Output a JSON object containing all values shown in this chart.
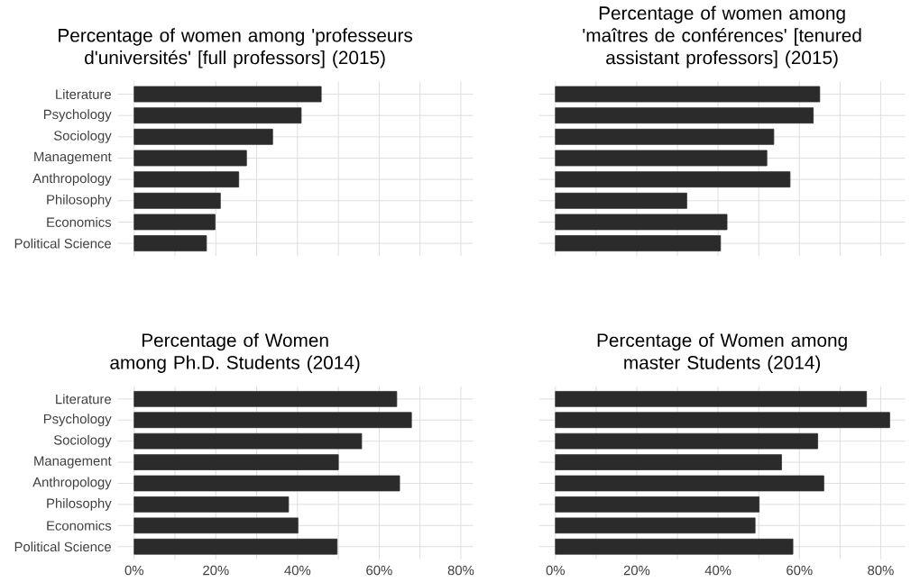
{
  "chart_data": [
    {
      "type": "bar",
      "orientation": "horizontal",
      "title": "Percentage of women among 'professeurs d'universités' [full professors] (2015)",
      "categories": [
        "Literature",
        "Psychology",
        "Sociology",
        "Management",
        "Anthropology",
        "Philosophy",
        "Economics",
        "Political Science"
      ],
      "values": [
        45.8,
        40.9,
        33.9,
        27.5,
        25.6,
        21.1,
        19.8,
        17.7
      ],
      "color": "#2b2b2b",
      "xlim": [
        -4,
        83
      ],
      "xticks": [
        {
          "value": 0,
          "label": null
        },
        {
          "value": 10,
          "label": null
        },
        {
          "value": 20,
          "label": null
        },
        {
          "value": 30,
          "label": null
        },
        {
          "value": 40,
          "label": null
        },
        {
          "value": 50,
          "label": null
        },
        {
          "value": 60,
          "label": null
        },
        {
          "value": 70,
          "label": null
        },
        {
          "value": 80,
          "label": null
        }
      ],
      "grid": true,
      "tick_labels": "y"
    },
    {
      "type": "bar",
      "orientation": "horizontal",
      "title": "Percentage of women among 'maîtres de conférences' [tenured assistant professors] (2015)",
      "categories": [
        null,
        null,
        null,
        null,
        null,
        null,
        null,
        null
      ],
      "values": [
        65.0,
        63.4,
        53.7,
        52.0,
        57.7,
        32.3,
        42.2,
        40.6
      ],
      "color": "#2b2b2b",
      "xlim": [
        -4,
        86
      ],
      "xticks": [
        {
          "value": 0,
          "label": null
        },
        {
          "value": 10,
          "label": null
        },
        {
          "value": 20,
          "label": null
        },
        {
          "value": 30,
          "label": null
        },
        {
          "value": 40,
          "label": null
        },
        {
          "value": 50,
          "label": null
        },
        {
          "value": 60,
          "label": null
        },
        {
          "value": 70,
          "label": null
        },
        {
          "value": 80,
          "label": null
        }
      ],
      "grid": true,
      "tick_labels": false
    },
    {
      "type": "bar",
      "orientation": "horizontal",
      "title": "Percentage of Women among Ph.D. Students (2014)",
      "categories": [
        "Literature",
        "Psychology",
        "Sociology",
        "Management",
        "Anthropology",
        "Philosophy",
        "Economics",
        "Political Science"
      ],
      "values": [
        64.3,
        67.9,
        55.7,
        50.0,
        65.0,
        37.8,
        40.1,
        49.7
      ],
      "color": "#2b2b2b",
      "xlim": [
        -4,
        83
      ],
      "xticks": [
        {
          "value": 0,
          "label": "0%"
        },
        {
          "value": 10,
          "label": null
        },
        {
          "value": 20,
          "label": "20%"
        },
        {
          "value": 30,
          "label": null
        },
        {
          "value": 40,
          "label": "40%"
        },
        {
          "value": 50,
          "label": null
        },
        {
          "value": 60,
          "label": "60%"
        },
        {
          "value": 70,
          "label": null
        },
        {
          "value": 80,
          "label": "80%"
        }
      ],
      "grid": true
    },
    {
      "type": "bar",
      "orientation": "horizontal",
      "title": "Percentage of Women among master Students (2014)",
      "categories": [
        null,
        null,
        null,
        null,
        null,
        null,
        null,
        null
      ],
      "values": [
        76.5,
        82.2,
        64.5,
        55.6,
        66.0,
        50.1,
        49.1,
        58.4
      ],
      "color": "#2b2b2b",
      "xlim": [
        -4,
        86
      ],
      "xticks": [
        {
          "value": 0,
          "label": "0%"
        },
        {
          "value": 10,
          "label": null
        },
        {
          "value": 20,
          "label": "20%"
        },
        {
          "value": 30,
          "label": null
        },
        {
          "value": 40,
          "label": "40%"
        },
        {
          "value": 50,
          "label": null
        },
        {
          "value": 60,
          "label": "60%"
        },
        {
          "value": 70,
          "label": null
        },
        {
          "value": 80,
          "label": "80%"
        }
      ],
      "grid": true,
      "tick_labels": "x"
    }
  ]
}
